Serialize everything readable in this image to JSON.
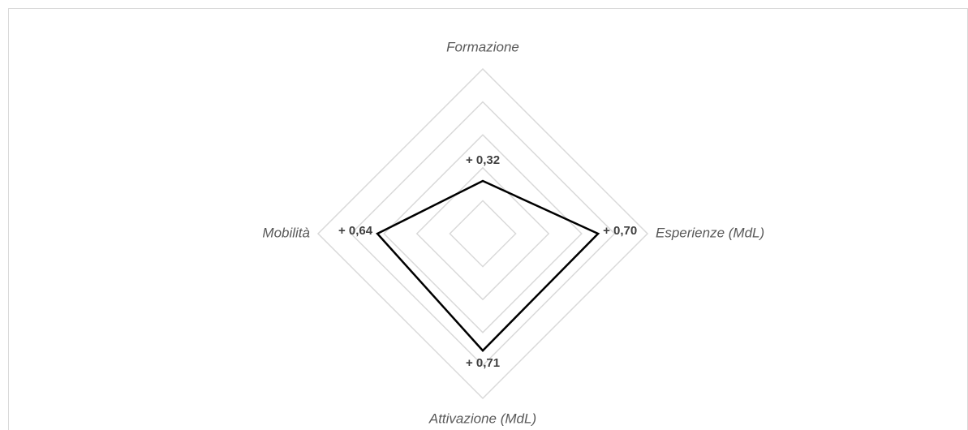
{
  "chart_data": {
    "type": "radar",
    "categories": [
      "Formazione",
      "Esperienze (MdL)",
      "Attivazione (MdL)",
      "Mobilità"
    ],
    "values": [
      0.32,
      0.7,
      0.71,
      0.64
    ],
    "value_labels": [
      "+ 0,32",
      "+ 0,70",
      "+ 0,71",
      "+ 0,64"
    ],
    "color": "#000000",
    "ylim": [
      0,
      1
    ],
    "yticks": [
      0.2,
      0.4,
      0.6,
      0.8,
      1
    ],
    "grid": true
  }
}
